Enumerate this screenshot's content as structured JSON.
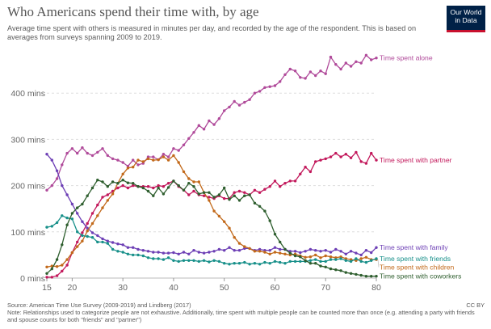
{
  "header": {
    "title": "Who Americans spend their time with, by age",
    "subtitle": "Average time spent with others is measured in minutes per day, and recorded by the age of the respondent. This is based on averages from surveys spanning 2009 to 2019.",
    "logo_line1": "Our World",
    "logo_line2": "in Data"
  },
  "footer": {
    "source": "Source: American Time Use Survey (2009-2019) and Lindberg (2017)",
    "note": "Note: Relationships used to categorize people are not exhaustive. Additionally, time spent with multiple people can be counted more than once (e.g. attending a party with friends and spouse counts for both \"friends\" and \"partner\")",
    "license": "CC BY"
  },
  "chart_data": {
    "type": "line",
    "title": "Who Americans spend their time with, by age",
    "xlim": [
      15,
      80
    ],
    "ylim": [
      0,
      500
    ],
    "x_ticks": [
      15,
      20,
      30,
      40,
      50,
      60,
      70,
      80
    ],
    "y_ticks": [
      {
        "value": 0,
        "label": "0 mins"
      },
      {
        "value": 100,
        "label": "100 mins"
      },
      {
        "value": 200,
        "label": "200 mins"
      },
      {
        "value": 300,
        "label": "300 mins"
      },
      {
        "value": 400,
        "label": "400 mins"
      }
    ],
    "grid": "horizontal dashed",
    "x": [
      15,
      16,
      17,
      18,
      19,
      20,
      21,
      22,
      23,
      24,
      25,
      26,
      27,
      28,
      29,
      30,
      31,
      32,
      33,
      34,
      35,
      36,
      37,
      38,
      39,
      40,
      41,
      42,
      43,
      44,
      45,
      46,
      47,
      48,
      49,
      50,
      51,
      52,
      53,
      54,
      55,
      56,
      57,
      58,
      59,
      60,
      61,
      62,
      63,
      64,
      65,
      66,
      67,
      68,
      69,
      70,
      71,
      72,
      73,
      74,
      75,
      76,
      77,
      78,
      79,
      80
    ],
    "series": [
      {
        "name": "Time spent alone",
        "color": "#b04a9a",
        "values": [
          190,
          200,
          215,
          245,
          270,
          280,
          270,
          282,
          270,
          265,
          272,
          280,
          265,
          258,
          255,
          250,
          242,
          255,
          245,
          248,
          262,
          262,
          256,
          268,
          262,
          280,
          276,
          288,
          302,
          315,
          330,
          322,
          340,
          332,
          345,
          362,
          370,
          382,
          374,
          380,
          386,
          400,
          404,
          412,
          414,
          416,
          425,
          440,
          452,
          448,
          434,
          432,
          446,
          438,
          448,
          442,
          478,
          462,
          452,
          465,
          458,
          468,
          465,
          482,
          472,
          476
        ]
      },
      {
        "name": "Time spent with partner",
        "color": "#c2185b",
        "values": [
          2,
          2,
          5,
          15,
          28,
          55,
          78,
          98,
          118,
          140,
          158,
          175,
          180,
          188,
          195,
          200,
          195,
          200,
          198,
          198,
          198,
          195,
          200,
          198,
          205,
          210,
          198,
          190,
          180,
          188,
          180,
          178,
          175,
          172,
          178,
          172,
          172,
          185,
          188,
          185,
          180,
          190,
          185,
          192,
          198,
          210,
          198,
          205,
          210,
          210,
          225,
          240,
          230,
          252,
          255,
          258,
          262,
          270,
          262,
          268,
          260,
          272,
          252,
          248,
          270,
          255
        ]
      },
      {
        "name": "Time spent with family",
        "color": "#6d3fb5",
        "values": [
          268,
          255,
          232,
          200,
          180,
          160,
          140,
          122,
          108,
          98,
          92,
          85,
          80,
          77,
          74,
          72,
          66,
          66,
          62,
          60,
          58,
          56,
          56,
          54,
          54,
          55,
          52,
          56,
          52,
          60,
          56,
          54,
          56,
          58,
          62,
          60,
          66,
          60,
          60,
          64,
          64,
          60,
          62,
          60,
          60,
          66,
          62,
          62,
          58,
          58,
          55,
          58,
          62,
          60,
          58,
          60,
          56,
          62,
          58,
          52,
          58,
          54,
          50,
          60,
          55,
          66
        ]
      },
      {
        "name": "Time spent with children",
        "color": "#c2691a",
        "values": [
          24,
          26,
          25,
          28,
          40,
          55,
          68,
          80,
          102,
          118,
          135,
          152,
          168,
          182,
          205,
          225,
          238,
          240,
          255,
          252,
          258,
          255,
          256,
          262,
          255,
          265,
          250,
          230,
          215,
          208,
          208,
          185,
          168,
          145,
          134,
          122,
          108,
          88,
          75,
          68,
          64,
          58,
          58,
          56,
          52,
          56,
          54,
          52,
          50,
          52,
          48,
          45,
          46,
          50,
          44,
          48,
          46,
          44,
          46,
          42,
          40,
          38,
          42,
          45,
          40,
          40
        ]
      },
      {
        "name": "Time spent with friends",
        "color": "#18908a",
        "values": [
          110,
          112,
          120,
          135,
          130,
          128,
          100,
          92,
          90,
          88,
          78,
          78,
          75,
          62,
          58,
          56,
          52,
          50,
          50,
          48,
          44,
          42,
          42,
          40,
          44,
          38,
          36,
          38,
          38,
          38,
          36,
          38,
          35,
          38,
          36,
          32,
          30,
          32,
          32,
          34,
          30,
          32,
          30,
          34,
          32,
          36,
          34,
          32,
          36,
          36,
          36,
          36,
          38,
          40,
          36,
          36,
          40,
          40,
          42,
          38,
          36,
          42,
          36,
          34,
          38,
          42
        ]
      },
      {
        "name": "Time spent with coworkers",
        "color": "#2e5e2e",
        "values": [
          10,
          20,
          40,
          72,
          115,
          140,
          152,
          160,
          178,
          195,
          212,
          208,
          198,
          208,
          205,
          212,
          206,
          205,
          198,
          195,
          188,
          178,
          195,
          182,
          196,
          210,
          200,
          190,
          205,
          198,
          182,
          185,
          185,
          175,
          180,
          195,
          170,
          178,
          168,
          178,
          180,
          162,
          155,
          145,
          124,
          95,
          78,
          62,
          54,
          48,
          46,
          38,
          32,
          32,
          26,
          24,
          20,
          18,
          16,
          12,
          10,
          8,
          6,
          4,
          4,
          4
        ]
      }
    ]
  }
}
